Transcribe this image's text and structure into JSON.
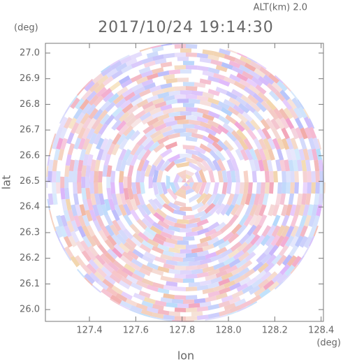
{
  "chart_data": {
    "type": "ppi",
    "title": "2017/10/24 19:14:30",
    "subtitle": "ALT(km) 2.0",
    "x_label": "lon",
    "y_label": "lat",
    "x_unit": "(deg)",
    "y_unit": "(deg)",
    "xlim": [
      127.21,
      128.41
    ],
    "ylim": [
      25.954,
      27.038
    ],
    "xticks": [
      {
        "value": 127.4,
        "label": "127.4"
      },
      127.6,
      127.8,
      {
        "value": 128.0,
        "label": "128.0"
      },
      128.2,
      128.4
    ],
    "yticks": [
      {
        "value": 26.0,
        "label": "26.0"
      },
      26.1,
      26.2,
      26.3,
      26.4,
      26.5,
      26.6,
      26.7,
      26.8,
      26.9,
      {
        "value": 27.0,
        "label": "27.0"
      }
    ]
  }
}
